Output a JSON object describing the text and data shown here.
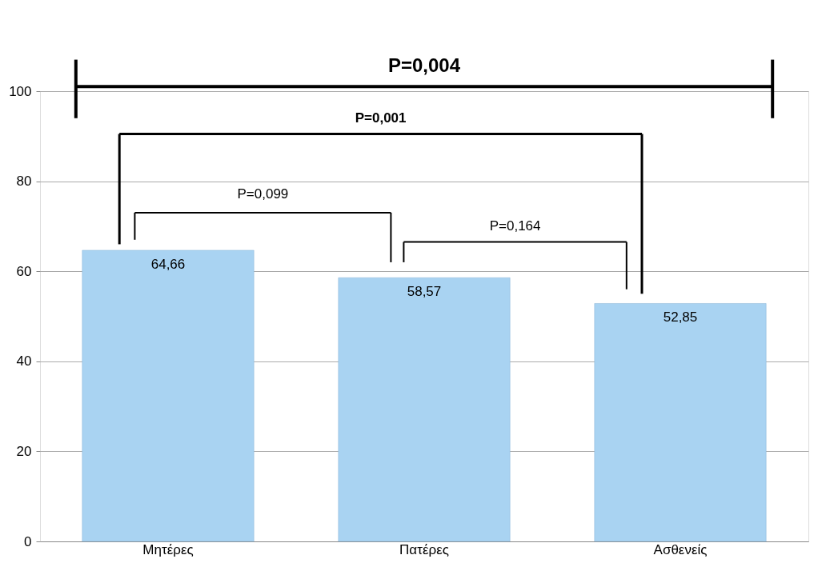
{
  "chart_data": {
    "type": "bar",
    "categories": [
      "Μητέρες",
      "Πατέρες",
      "Ασθενείς"
    ],
    "values": [
      64.66,
      58.57,
      52.85
    ],
    "value_labels": [
      "64,66",
      "58,57",
      "52,85"
    ],
    "color": "#a9d3f2",
    "ylim": [
      0,
      100
    ],
    "yticks": [
      0,
      20,
      40,
      60,
      80,
      100
    ],
    "grid": "y",
    "annotations": [
      "P=0,004",
      "P=0,001",
      "P=0,099",
      "P=0,164"
    ]
  }
}
